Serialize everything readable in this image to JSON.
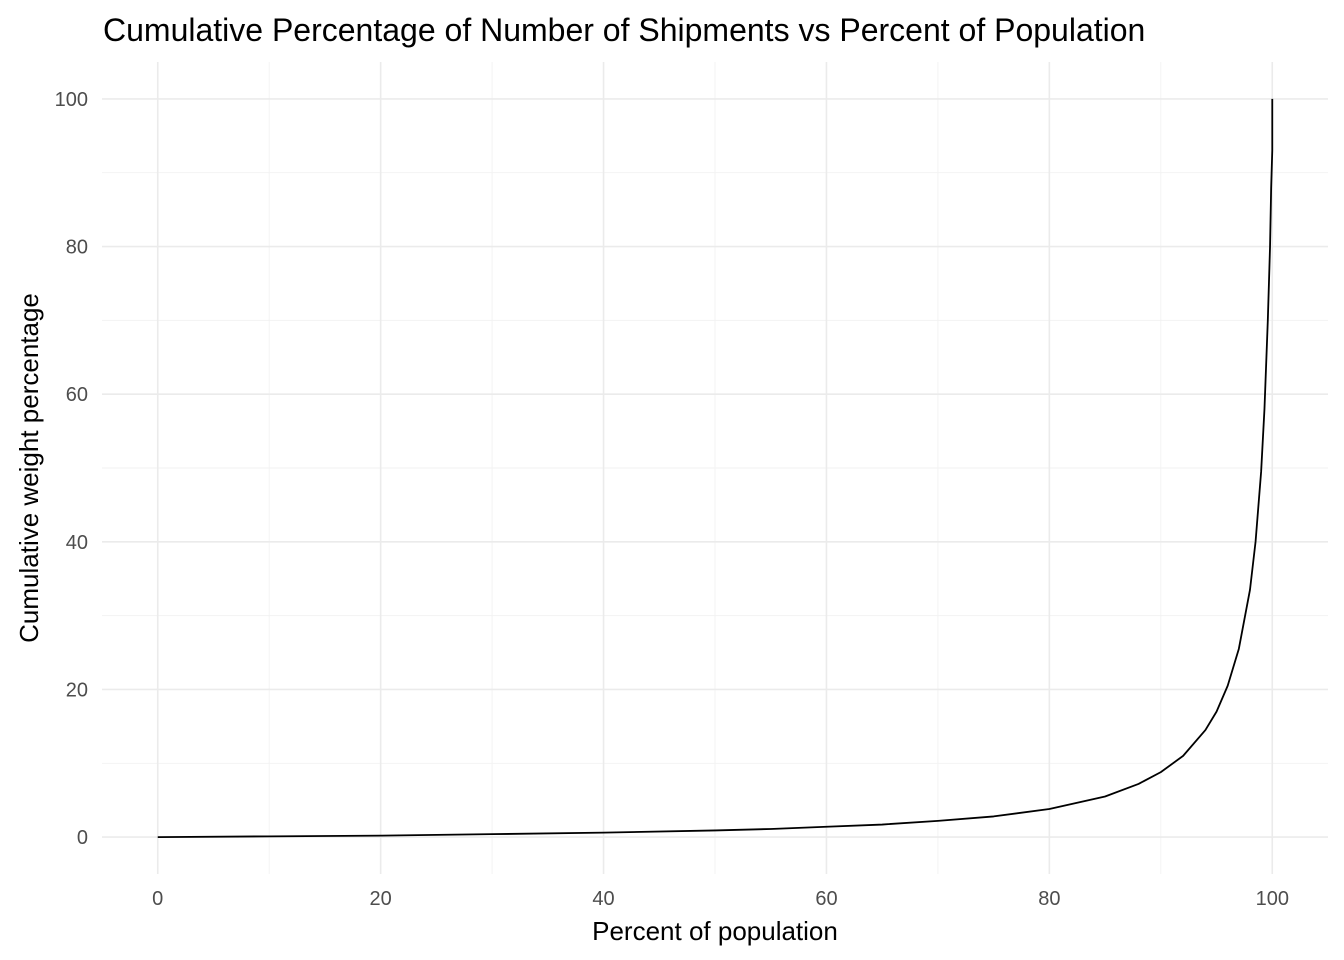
{
  "chart_data": {
    "type": "line",
    "title": "Cumulative Percentage of Number of Shipments vs Percent of Population",
    "xlabel": "Percent of population",
    "ylabel": "Cumulative weight percentage",
    "xlim": [
      -5,
      105
    ],
    "ylim": [
      -5,
      105
    ],
    "x_ticks": [
      0,
      20,
      40,
      60,
      80,
      100
    ],
    "y_ticks": [
      0,
      20,
      40,
      60,
      80,
      100
    ],
    "x_tick_labels": [
      "0",
      "20",
      "40",
      "60",
      "80",
      "100"
    ],
    "y_tick_labels": [
      "0",
      "20",
      "40",
      "60",
      "80",
      "100"
    ],
    "grid": true,
    "series": [
      {
        "color": "#000000",
        "x": [
          0,
          10,
          20,
          30,
          40,
          50,
          55,
          60,
          65,
          70,
          75,
          80,
          85,
          88,
          90,
          92,
          94,
          95,
          96,
          97,
          98,
          98.5,
          99,
          99.3,
          99.6,
          99.8,
          99.9,
          100,
          100
        ],
        "y": [
          0,
          0.1,
          0.2,
          0.4,
          0.6,
          0.9,
          1.1,
          1.4,
          1.7,
          2.2,
          2.8,
          3.8,
          5.5,
          7.2,
          8.8,
          11.0,
          14.5,
          17.0,
          20.5,
          25.5,
          33.5,
          40.0,
          49.5,
          58.0,
          70.0,
          80.0,
          88.0,
          93.0,
          100.0
        ]
      }
    ]
  }
}
